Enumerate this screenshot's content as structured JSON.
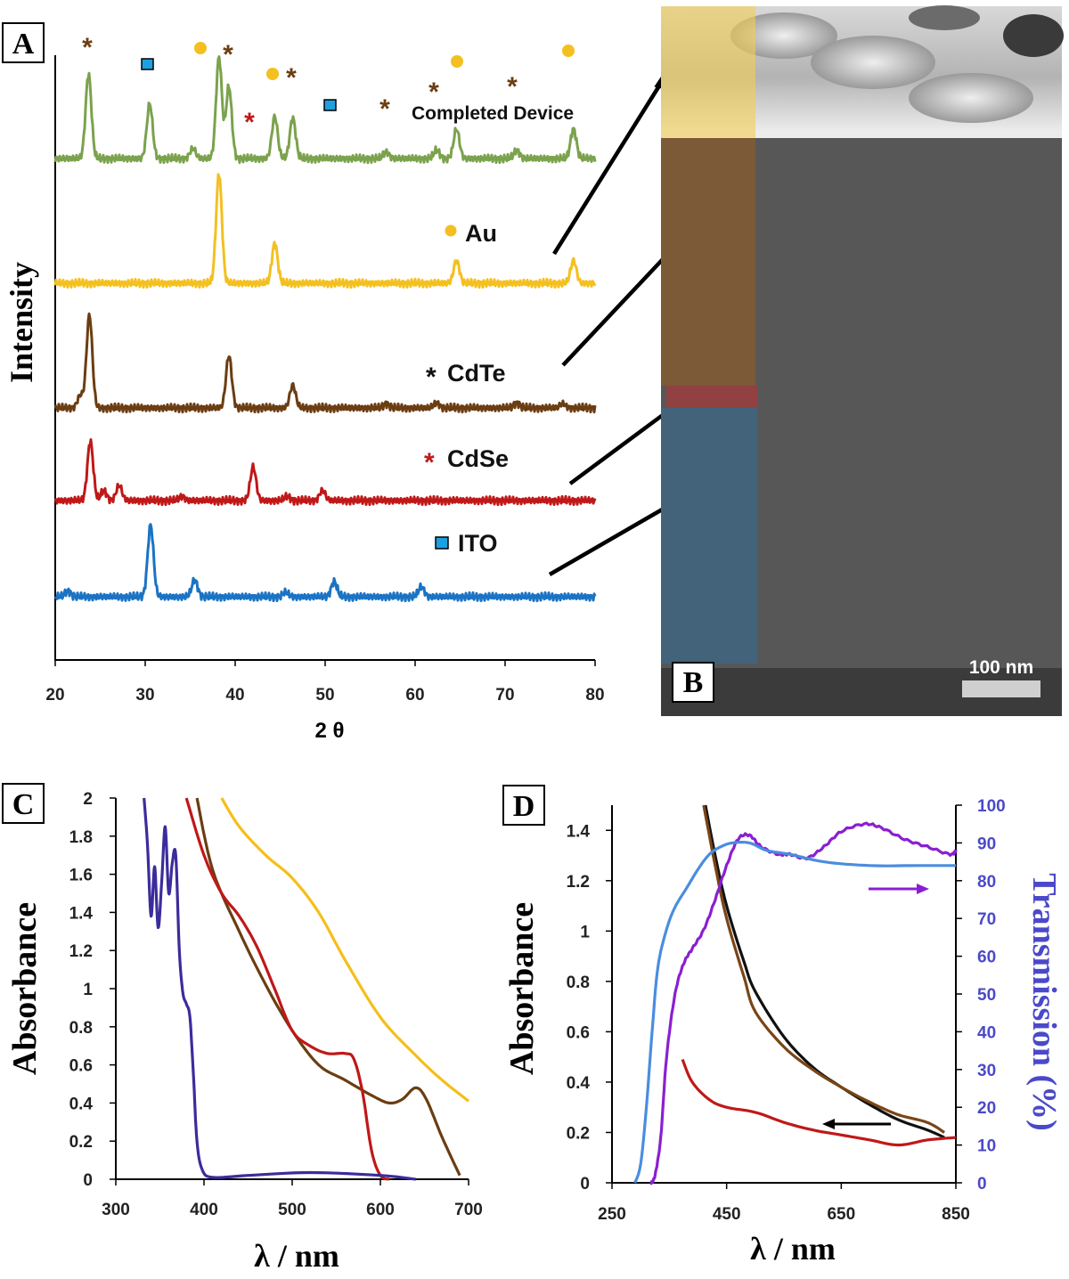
{
  "chart_data": [
    {
      "panel": "A",
      "type": "line",
      "xlabel": "2 θ",
      "ylabel": "Intensity",
      "xlim": [
        20,
        80
      ],
      "xticks": [
        20,
        30,
        40,
        50,
        60,
        70,
        80
      ],
      "series": [
        {
          "name": "Completed Device",
          "color": "#7ba24d",
          "peaks": [
            [
              23.7,
              1.0
            ],
            [
              30.5,
              0.65
            ],
            [
              35.3,
              0.12
            ],
            [
              38.2,
              1.2
            ],
            [
              39.3,
              0.85
            ],
            [
              44.4,
              0.5
            ],
            [
              46.4,
              0.48
            ],
            [
              56.8,
              0.08
            ],
            [
              62.4,
              0.1
            ],
            [
              64.6,
              0.35
            ],
            [
              71.3,
              0.1
            ],
            [
              77.6,
              0.35
            ]
          ]
        },
        {
          "name": "Au",
          "color": "#f4c020",
          "peaks": [
            [
              38.2,
              1.3
            ],
            [
              44.4,
              0.47
            ],
            [
              64.6,
              0.27
            ],
            [
              77.6,
              0.27
            ]
          ]
        },
        {
          "name": "CdTe",
          "color": "#6b3d12",
          "peaks": [
            [
              22.8,
              0.15
            ],
            [
              23.8,
              1.1
            ],
            [
              39.3,
              0.62
            ],
            [
              46.4,
              0.27
            ],
            [
              56.8,
              0.05
            ],
            [
              62.4,
              0.06
            ],
            [
              71.3,
              0.06
            ],
            [
              76.4,
              0.05
            ]
          ]
        },
        {
          "name": "CdSe",
          "color": "#c01818",
          "peaks": [
            [
              23.9,
              0.7
            ],
            [
              25.4,
              0.12
            ],
            [
              27.1,
              0.18
            ],
            [
              34.1,
              0.05
            ],
            [
              42.0,
              0.4
            ],
            [
              45.8,
              0.05
            ],
            [
              49.7,
              0.12
            ]
          ]
        },
        {
          "name": "ITO",
          "color": "#1a73c4",
          "peaks": [
            [
              21.4,
              0.07
            ],
            [
              30.6,
              0.85
            ],
            [
              35.5,
              0.2
            ],
            [
              45.6,
              0.05
            ],
            [
              51.0,
              0.18
            ],
            [
              60.7,
              0.12
            ]
          ]
        }
      ],
      "trace_labels": [
        "Completed Device",
        "Au",
        "CdTe",
        "CdSe",
        "ITO"
      ],
      "peak_markers": [
        {
          "symbol": "*",
          "color": "#6b3d12",
          "label": "CdTe"
        },
        {
          "symbol": "*",
          "color": "#c01818",
          "label": "CdSe"
        },
        {
          "symbol": "●",
          "color": "#f4c020",
          "label": "Au"
        },
        {
          "symbol": "■",
          "color": "#1ea0e0",
          "label": "ITO"
        }
      ]
    },
    {
      "panel": "B",
      "type": "image",
      "scale_bar": "100 nm"
    },
    {
      "panel": "C",
      "type": "line",
      "xlabel": "λ / nm",
      "ylabel": "Absorbance",
      "xlim": [
        300,
        700
      ],
      "ylim": [
        0,
        2
      ],
      "xticks": [
        300,
        400,
        500,
        600,
        700
      ],
      "yticks": [
        "0",
        "0.2",
        "0.4",
        "0.6",
        "0.8",
        "1",
        "1.2",
        "1.4",
        "1.6",
        "1.8",
        "2"
      ],
      "series": [
        {
          "name": "yellow",
          "color": "#f6be1a",
          "points": [
            [
              420,
              2.0
            ],
            [
              440,
              1.85
            ],
            [
              470,
              1.7
            ],
            [
              500,
              1.58
            ],
            [
              530,
              1.4
            ],
            [
              560,
              1.15
            ],
            [
              600,
              0.85
            ],
            [
              640,
              0.65
            ],
            [
              670,
              0.52
            ],
            [
              700,
              0.41
            ]
          ]
        },
        {
          "name": "brown",
          "color": "#6b3d12",
          "points": [
            [
              392,
              2.0
            ],
            [
              410,
              1.62
            ],
            [
              440,
              1.3
            ],
            [
              470,
              1.02
            ],
            [
              500,
              0.78
            ],
            [
              530,
              0.6
            ],
            [
              560,
              0.52
            ],
            [
              590,
              0.44
            ],
            [
              610,
              0.4
            ],
            [
              625,
              0.42
            ],
            [
              640,
              0.48
            ],
            [
              652,
              0.42
            ],
            [
              670,
              0.22
            ],
            [
              690,
              0.02
            ]
          ]
        },
        {
          "name": "red",
          "color": "#c01818",
          "points": [
            [
              380,
              2.0
            ],
            [
              400,
              1.7
            ],
            [
              420,
              1.5
            ],
            [
              440,
              1.38
            ],
            [
              460,
              1.22
            ],
            [
              480,
              1.0
            ],
            [
              500,
              0.78
            ],
            [
              520,
              0.7
            ],
            [
              540,
              0.66
            ],
            [
              560,
              0.66
            ],
            [
              570,
              0.63
            ],
            [
              580,
              0.45
            ],
            [
              590,
              0.15
            ],
            [
              600,
              0.02
            ],
            [
              610,
              0.0
            ]
          ]
        },
        {
          "name": "blue",
          "color": "#3b2c9c",
          "points": [
            [
              332,
              2.0
            ],
            [
              336,
              1.75
            ],
            [
              340,
              1.38
            ],
            [
              344,
              1.64
            ],
            [
              348,
              1.32
            ],
            [
              352,
              1.56
            ],
            [
              356,
              1.85
            ],
            [
              360,
              1.5
            ],
            [
              364,
              1.66
            ],
            [
              368,
              1.7
            ],
            [
              372,
              1.2
            ],
            [
              376,
              0.98
            ],
            [
              380,
              0.92
            ],
            [
              384,
              0.85
            ],
            [
              388,
              0.55
            ],
            [
              392,
              0.2
            ],
            [
              398,
              0.05
            ],
            [
              410,
              0.01
            ],
            [
              450,
              0.02
            ],
            [
              520,
              0.035
            ],
            [
              600,
              0.02
            ],
            [
              640,
              0.0
            ]
          ]
        }
      ]
    },
    {
      "panel": "D",
      "type": "line",
      "xlabel": "λ / nm",
      "ylabel": "Absorbance",
      "y2label": "Transmission (%)",
      "xlim": [
        250,
        850
      ],
      "ylim": [
        0,
        1.5
      ],
      "y2lim": [
        0,
        100
      ],
      "xticks": [
        250,
        450,
        650,
        850
      ],
      "yticks": [
        "0",
        "0.2",
        "0.4",
        "0.6",
        "0.8",
        "1",
        "1.2",
        "1.4"
      ],
      "y2ticks": [
        "0",
        "10",
        "20",
        "30",
        "40",
        "50",
        "60",
        "70",
        "80",
        "90",
        "100"
      ],
      "series": [
        {
          "name": "black",
          "axis": "left",
          "color": "#111111",
          "points": [
            [
              413,
              1.5
            ],
            [
              430,
              1.3
            ],
            [
              450,
              1.1
            ],
            [
              480,
              0.88
            ],
            [
              500,
              0.76
            ],
            [
              550,
              0.58
            ],
            [
              600,
              0.46
            ],
            [
              650,
              0.38
            ],
            [
              700,
              0.31
            ],
            [
              750,
              0.25
            ],
            [
              800,
              0.21
            ],
            [
              830,
              0.18
            ]
          ]
        },
        {
          "name": "brown",
          "axis": "left",
          "color": "#7a4516",
          "points": [
            [
              410,
              1.5
            ],
            [
              430,
              1.26
            ],
            [
              450,
              1.05
            ],
            [
              480,
              0.82
            ],
            [
              500,
              0.68
            ],
            [
              550,
              0.54
            ],
            [
              600,
              0.45
            ],
            [
              650,
              0.38
            ],
            [
              700,
              0.32
            ],
            [
              750,
              0.27
            ],
            [
              800,
              0.24
            ],
            [
              830,
              0.2
            ]
          ]
        },
        {
          "name": "red",
          "axis": "left",
          "color": "#c01818",
          "points": [
            [
              373,
              0.49
            ],
            [
              390,
              0.4
            ],
            [
              420,
              0.33
            ],
            [
              450,
              0.3
            ],
            [
              500,
              0.28
            ],
            [
              550,
              0.24
            ],
            [
              600,
              0.21
            ],
            [
              650,
              0.19
            ],
            [
              700,
              0.17
            ],
            [
              750,
              0.15
            ],
            [
              800,
              0.17
            ],
            [
              850,
              0.18
            ]
          ]
        },
        {
          "name": "purple",
          "axis": "right",
          "color": "#8a1fd1",
          "points": [
            [
              318,
              0
            ],
            [
              325,
              2
            ],
            [
              335,
              12
            ],
            [
              345,
              33
            ],
            [
              360,
              50
            ],
            [
              375,
              58
            ],
            [
              390,
              62
            ],
            [
              410,
              67
            ],
            [
              430,
              75
            ],
            [
              450,
              84
            ],
            [
              470,
              91
            ],
            [
              490,
              92
            ],
            [
              510,
              89
            ],
            [
              540,
              87
            ],
            [
              560,
              87
            ],
            [
              590,
              86
            ],
            [
              620,
              89
            ],
            [
              650,
              93
            ],
            [
              690,
              95
            ],
            [
              720,
              94
            ],
            [
              760,
              91
            ],
            [
              800,
              89
            ],
            [
              840,
              87
            ],
            [
              850,
              88
            ]
          ]
        },
        {
          "name": "light-blue",
          "axis": "right",
          "color": "#4a8ddf",
          "points": [
            [
              290,
              0
            ],
            [
              300,
              5
            ],
            [
              310,
              20
            ],
            [
              320,
              40
            ],
            [
              330,
              57
            ],
            [
              345,
              67
            ],
            [
              360,
              73
            ],
            [
              380,
              78
            ],
            [
              400,
              83
            ],
            [
              420,
              87
            ],
            [
              440,
              89
            ],
            [
              460,
              90
            ],
            [
              490,
              90
            ],
            [
              520,
              88
            ],
            [
              560,
              87
            ],
            [
              620,
              85
            ],
            [
              700,
              84
            ],
            [
              780,
              84
            ],
            [
              850,
              84
            ]
          ]
        }
      ]
    }
  ]
}
